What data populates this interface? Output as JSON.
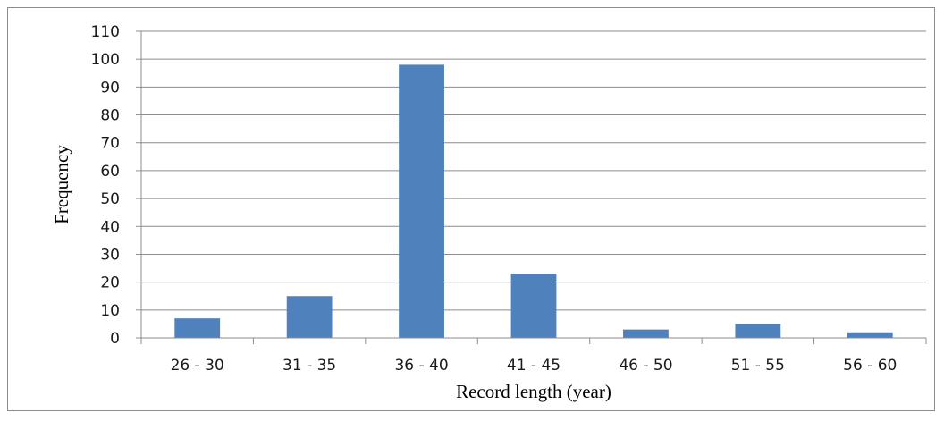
{
  "chart_data": {
    "type": "bar",
    "categories": [
      "26 - 30",
      "31 - 35",
      "36 - 40",
      "41 - 45",
      "46 - 50",
      "51 - 55",
      "56 - 60"
    ],
    "values": [
      7,
      15,
      98,
      23,
      3,
      5,
      2
    ],
    "title": "",
    "xlabel": "Record length (year)",
    "ylabel": "Frequency",
    "ylim": [
      0,
      110
    ],
    "yticks": [
      0,
      10,
      20,
      30,
      40,
      50,
      60,
      70,
      80,
      90,
      100,
      110
    ],
    "grid": true,
    "legend": "none",
    "bar_color": "#4f81bd"
  }
}
